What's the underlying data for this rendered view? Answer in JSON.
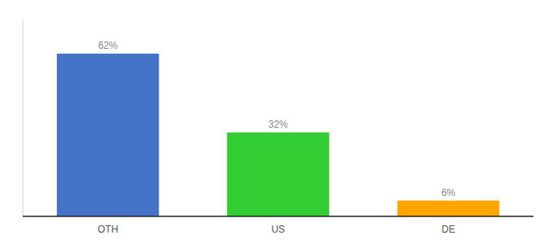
{
  "chart_data": {
    "type": "bar",
    "categories": [
      "OTH",
      "US",
      "DE"
    ],
    "values": [
      62,
      32,
      6
    ],
    "value_labels": [
      "62%",
      "32%",
      "6%"
    ],
    "colors": [
      "#4472C4",
      "#33CC33",
      "#FFA500"
    ],
    "ylim": [
      0,
      75
    ],
    "data_labels": true,
    "tick_labels": "x"
  }
}
